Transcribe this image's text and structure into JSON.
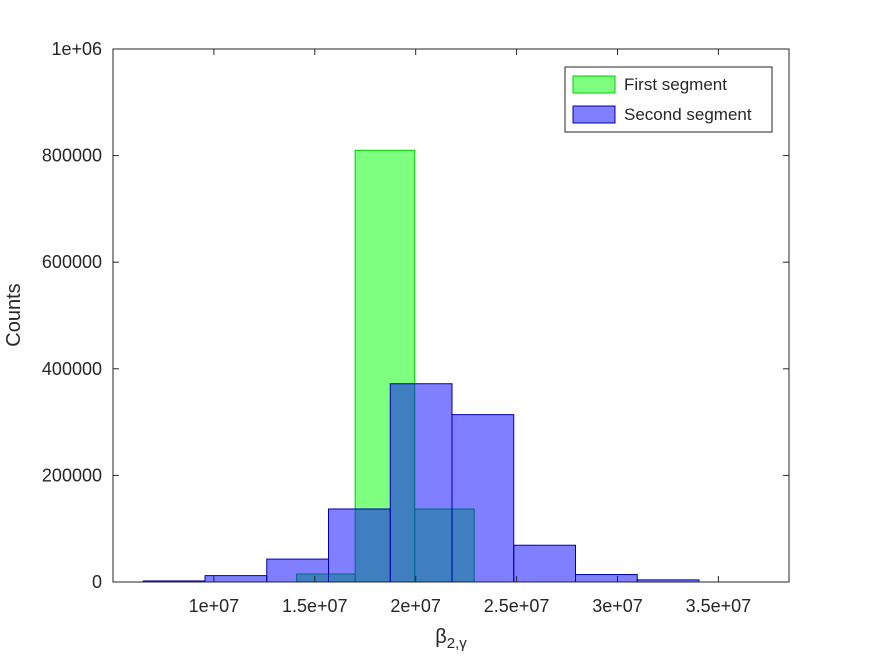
{
  "chart_data": {
    "type": "bar",
    "chart_kind": "histogram",
    "xlabel": "β",
    "xlabel_subscript": "2,γ",
    "ylabel": "Counts",
    "xlim": [
      5000000,
      38500000
    ],
    "ylim": [
      0,
      1000000
    ],
    "x_tick_values": [
      10000000,
      15000000,
      20000000,
      25000000,
      30000000,
      35000000
    ],
    "x_tick_labels": [
      "1e+07",
      "1.5e+07",
      "2e+07",
      "2.5e+07",
      "3e+07",
      "3.5e+07"
    ],
    "y_tick_values": [
      0,
      200000,
      400000,
      600000,
      800000,
      1000000
    ],
    "y_tick_labels": [
      "0",
      "200000",
      "400000",
      "600000",
      "800000",
      "1e+06"
    ],
    "grid": false,
    "legend_position": "top-right",
    "series": [
      {
        "name": "First segment",
        "face_color": "#00ff00",
        "edge_color": "#00cc00",
        "opacity": 0.5,
        "bins": [
          {
            "x0": 14100000,
            "x1": 17000000,
            "value": 15000
          },
          {
            "x0": 17000000,
            "x1": 19950000,
            "value": 810000
          },
          {
            "x0": 19950000,
            "x1": 22900000,
            "value": 137000
          }
        ]
      },
      {
        "name": "Second segment",
        "face_color": "#0000ff",
        "edge_color": "#0000b0",
        "opacity": 0.5,
        "bins": [
          {
            "x0": 6500000,
            "x1": 9560000,
            "value": 2000
          },
          {
            "x0": 9560000,
            "x1": 12620000,
            "value": 12000
          },
          {
            "x0": 12620000,
            "x1": 15680000,
            "value": 43000
          },
          {
            "x0": 15680000,
            "x1": 18740000,
            "value": 137000
          },
          {
            "x0": 18740000,
            "x1": 21800000,
            "value": 372000
          },
          {
            "x0": 21800000,
            "x1": 24860000,
            "value": 314000
          },
          {
            "x0": 24860000,
            "x1": 27920000,
            "value": 69000
          },
          {
            "x0": 27920000,
            "x1": 30980000,
            "value": 14000
          },
          {
            "x0": 30980000,
            "x1": 34040000,
            "value": 4000
          }
        ]
      }
    ]
  }
}
